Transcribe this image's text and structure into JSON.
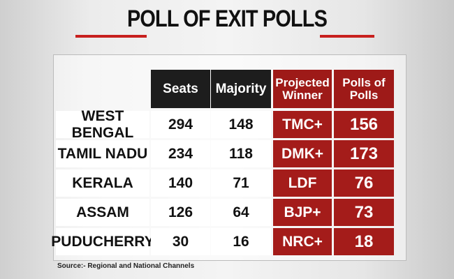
{
  "title": "POLL OF EXIT POLLS",
  "table": {
    "header": [
      "Seats",
      "Majority",
      "Projected Winner",
      "Polls of Polls"
    ],
    "rows": [
      [
        "WEST BENGAL",
        294,
        148,
        "TMC+",
        156
      ],
      [
        "TAMIL NADU",
        234,
        118,
        "DMK+",
        173
      ],
      [
        "KERALA",
        140,
        71,
        "LDF",
        76
      ],
      [
        "ASSAM",
        126,
        64,
        "BJP+",
        73
      ],
      [
        "PUDUCHERRY",
        30,
        16,
        "NRC+",
        18
      ]
    ]
  },
  "source": "Source:- Regional and National Channels"
}
